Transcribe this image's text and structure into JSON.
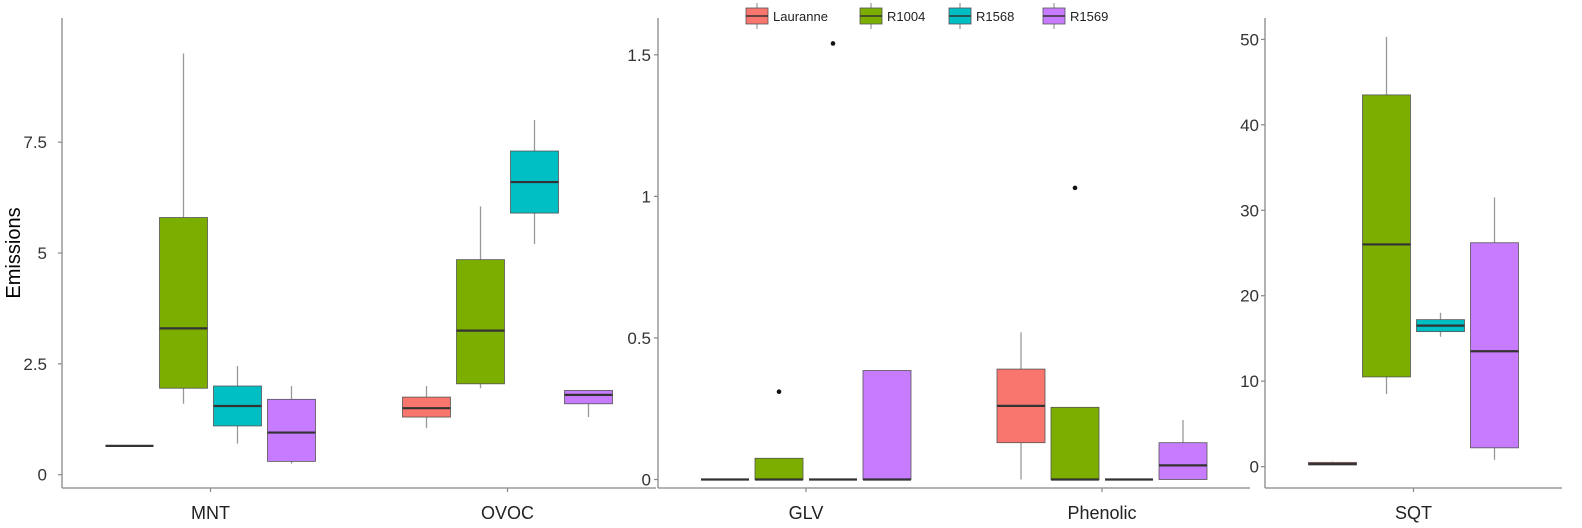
{
  "chart_data": [
    {
      "type": "box",
      "panel": "left",
      "ylabel": "Emissions",
      "ylim": [
        -0.3,
        10.3
      ],
      "yticks": [
        0,
        2.5,
        5,
        7.5
      ],
      "ytick_labels": [
        "0",
        "2.5",
        "5",
        "7.5"
      ],
      "categories": [
        "MNT",
        "OVOC"
      ],
      "series": [
        {
          "name": "Lauranne",
          "boxes": [
            {
              "category": "MNT",
              "min": 0.65,
              "q1": 0.65,
              "median": 0.65,
              "q3": 0.65,
              "max": 0.65,
              "outliers": []
            },
            {
              "category": "OVOC",
              "min": 1.05,
              "q1": 1.3,
              "median": 1.5,
              "q3": 1.75,
              "max": 2.0,
              "outliers": []
            }
          ]
        },
        {
          "name": "R1004",
          "boxes": [
            {
              "category": "MNT",
              "min": 1.6,
              "q1": 1.95,
              "median": 3.3,
              "q3": 5.8,
              "max": 9.5,
              "outliers": []
            },
            {
              "category": "OVOC",
              "min": 1.95,
              "q1": 2.05,
              "median": 3.25,
              "q3": 4.85,
              "max": 6.05,
              "outliers": []
            }
          ]
        },
        {
          "name": "R1568",
          "boxes": [
            {
              "category": "MNT",
              "min": 0.7,
              "q1": 1.1,
              "median": 1.55,
              "q3": 2.0,
              "max": 2.45,
              "outliers": []
            },
            {
              "category": "OVOC",
              "min": 5.2,
              "q1": 5.9,
              "median": 6.6,
              "q3": 7.3,
              "max": 8.0,
              "outliers": []
            }
          ]
        },
        {
          "name": "R1569",
          "boxes": [
            {
              "category": "MNT",
              "min": 0.25,
              "q1": 0.3,
              "median": 0.95,
              "q3": 1.7,
              "max": 2.0,
              "outliers": []
            },
            {
              "category": "OVOC",
              "min": 1.3,
              "q1": 1.6,
              "median": 1.8,
              "q3": 1.9,
              "max": 1.9,
              "outliers": []
            }
          ]
        }
      ]
    },
    {
      "type": "box",
      "panel": "middle",
      "ylabel": "",
      "ylim": [
        -0.03,
        1.63
      ],
      "yticks": [
        0,
        0.5,
        1,
        1.5
      ],
      "ytick_labels": [
        "0",
        "0.5",
        "1",
        "1.5"
      ],
      "categories": [
        "GLV",
        "Phenolic"
      ],
      "series": [
        {
          "name": "Lauranne",
          "boxes": [
            {
              "category": "GLV",
              "min": 0,
              "q1": 0,
              "median": 0,
              "q3": 0,
              "max": 0,
              "outliers": []
            },
            {
              "category": "Phenolic",
              "min": 0,
              "q1": 0.13,
              "median": 0.26,
              "q3": 0.39,
              "max": 0.52,
              "outliers": []
            }
          ]
        },
        {
          "name": "R1004",
          "boxes": [
            {
              "category": "GLV",
              "min": 0,
              "q1": 0,
              "median": 0,
              "q3": 0.075,
              "max": 0.075,
              "outliers": [
                0.31
              ]
            },
            {
              "category": "Phenolic",
              "min": 0,
              "q1": 0,
              "median": 0,
              "q3": 0.255,
              "max": 0.255,
              "outliers": [
                1.03
              ]
            }
          ]
        },
        {
          "name": "R1568",
          "boxes": [
            {
              "category": "GLV",
              "min": 0,
              "q1": 0,
              "median": 0,
              "q3": 0,
              "max": 0,
              "outliers": [
                1.54
              ]
            },
            {
              "category": "Phenolic",
              "min": 0,
              "q1": 0,
              "median": 0,
              "q3": 0,
              "max": 0,
              "outliers": []
            }
          ]
        },
        {
          "name": "R1569",
          "boxes": [
            {
              "category": "GLV",
              "min": 0,
              "q1": 0,
              "median": 0,
              "q3": 0.385,
              "max": 0.385,
              "outliers": []
            },
            {
              "category": "Phenolic",
              "min": 0,
              "q1": 0,
              "median": 0.05,
              "q3": 0.13,
              "max": 0.21,
              "outliers": []
            }
          ]
        }
      ]
    },
    {
      "type": "box",
      "panel": "right",
      "ylabel": "",
      "ylim": [
        -2.5,
        52.5
      ],
      "yticks": [
        0,
        10,
        20,
        30,
        40,
        50
      ],
      "ytick_labels": [
        "0",
        "10",
        "20",
        "30",
        "40",
        "50"
      ],
      "categories": [
        "SQT"
      ],
      "series": [
        {
          "name": "Lauranne",
          "boxes": [
            {
              "category": "SQT",
              "min": 0.2,
              "q1": 0.2,
              "median": 0.3,
              "q3": 0.5,
              "max": 0.6,
              "outliers": []
            }
          ]
        },
        {
          "name": "R1004",
          "boxes": [
            {
              "category": "SQT",
              "min": 8.5,
              "q1": 10.5,
              "median": 26.0,
              "q3": 43.5,
              "max": 50.3,
              "outliers": []
            }
          ]
        },
        {
          "name": "R1568",
          "boxes": [
            {
              "category": "SQT",
              "min": 15.2,
              "q1": 15.8,
              "median": 16.5,
              "q3": 17.2,
              "max": 18.0,
              "outliers": []
            }
          ]
        },
        {
          "name": "R1569",
          "boxes": [
            {
              "category": "SQT",
              "min": 0.8,
              "q1": 2.2,
              "median": 13.5,
              "q3": 26.2,
              "max": 31.5,
              "outliers": []
            }
          ]
        }
      ]
    }
  ],
  "legend": {
    "placement": "top-center",
    "items": [
      {
        "label": "Lauranne",
        "color": "#F8766D"
      },
      {
        "label": "R1004",
        "color": "#7CAE00"
      },
      {
        "label": "R1568",
        "color": "#00BFC4"
      },
      {
        "label": "R1569",
        "color": "#C77CFF"
      }
    ]
  },
  "colors": {
    "Lauranne": "#F8766D",
    "R1004": "#7CAE00",
    "R1568": "#00BFC4",
    "R1569": "#C77CFF",
    "axis": "#888888",
    "whisker": "#999999",
    "median": "#333333"
  }
}
